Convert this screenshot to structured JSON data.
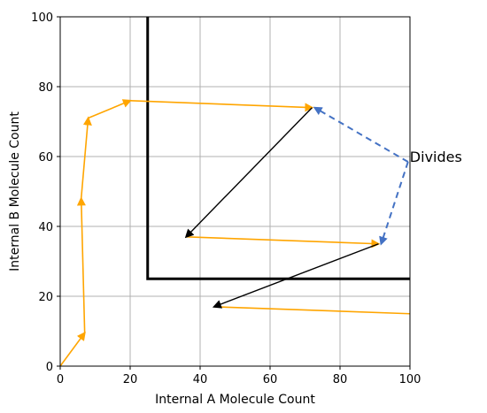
{
  "chart_data": {
    "type": "line",
    "title": "",
    "xlabel": "Internal A Molecule Count",
    "ylabel": "Internal B Molecule Count",
    "xlim": [
      0,
      100
    ],
    "ylim": [
      0,
      100
    ],
    "xticks": [
      "0",
      "20",
      "40",
      "60",
      "80",
      "100"
    ],
    "yticks": [
      "0",
      "20",
      "40",
      "60",
      "80",
      "100"
    ],
    "grid": true,
    "colors": {
      "trajectory": "#FFA500",
      "division": "#000000",
      "annotation_arrow": "#4472C4",
      "boundary": "#000000",
      "grid": "#b0b0b0"
    },
    "boundary": [
      [
        25,
        100
      ],
      [
        25,
        25
      ],
      [
        100,
        25
      ]
    ],
    "trajectory_segments": [
      [
        [
          0,
          0
        ],
        [
          7,
          9.5
        ],
        [
          6,
          48
        ],
        [
          8,
          71
        ],
        [
          20,
          76
        ],
        [
          72,
          74
        ]
      ],
      [
        [
          36,
          37
        ],
        [
          91,
          35
        ]
      ],
      [
        [
          44,
          17
        ],
        [
          100,
          15
        ]
      ]
    ],
    "division_arrows": [
      {
        "from": [
          72,
          74
        ],
        "to": [
          36,
          37
        ]
      },
      {
        "from": [
          91,
          35
        ],
        "to": [
          44,
          17
        ]
      }
    ],
    "annotation": {
      "text": "Divides",
      "anchor": [
        104,
        60
      ],
      "targets": [
        [
          72,
          74
        ],
        [
          91,
          35
        ]
      ]
    }
  }
}
